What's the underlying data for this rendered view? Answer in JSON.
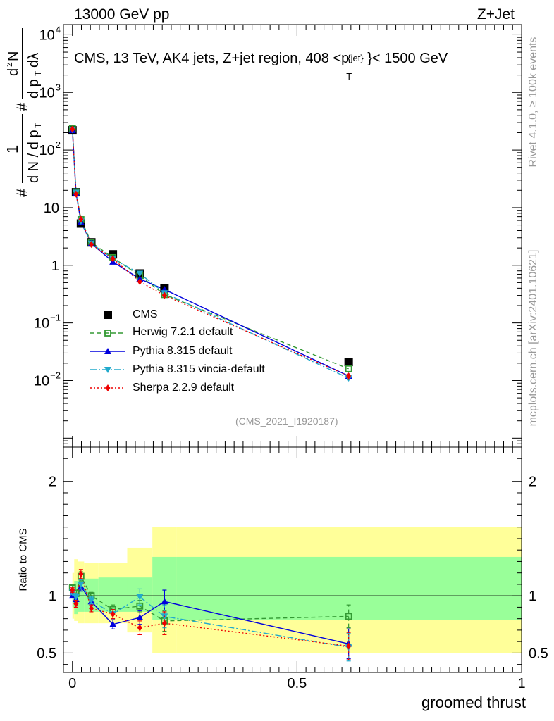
{
  "header": {
    "left": "13000 GeV pp",
    "right": "Z+Jet",
    "title": "CMS, 13 TeV, AK4 jets, Z+jet region, 408 <p",
    "title_sup": "{jet}",
    "title_sub": "T",
    "title_tail": "}< 1500 GeV"
  },
  "side_labels": {
    "rivet": "Rivet 4.1.0, ≥ 100k events",
    "mcplots": "mcplots.cern.ch [arXiv:2401.10621]"
  },
  "analysis_id": "(CMS_2021_I1920187)",
  "chart_data": [
    {
      "type": "line",
      "panel": "main",
      "yscale": "log",
      "ylabel": "1/dN/dp_T dN²/dp_T dλ",
      "ylim": [
        0.0007,
        15000
      ],
      "xlim": [
        -0.02,
        1.0
      ],
      "y_ticks": [
        {
          "v": 0.01,
          "b": "10",
          "e": "−2"
        },
        {
          "v": 0.1,
          "b": "10",
          "e": "−1"
        },
        {
          "v": 1,
          "b": "1",
          "e": ""
        },
        {
          "v": 10,
          "b": "10",
          "e": ""
        },
        {
          "v": 100,
          "b": "10",
          "e": "2"
        },
        {
          "v": 1000,
          "b": "10",
          "e": "3"
        },
        {
          "v": 10000,
          "b": "10",
          "e": "4"
        }
      ],
      "x": [
        0.0,
        0.008,
        0.019,
        0.042,
        0.09,
        0.15,
        0.205,
        0.615
      ],
      "series": [
        {
          "name": "CMS",
          "color": "#000000",
          "style": "points",
          "marker": "square",
          "values": [
            220,
            18.5,
            5.3,
            2.5,
            1.55,
            0.72,
            0.4,
            0.021
          ]
        },
        {
          "name": "Herwig 7.2.1 default",
          "color": "#339933",
          "style": "dashed",
          "marker": "open-square",
          "values": [
            235,
            18.8,
            6.2,
            2.5,
            1.36,
            0.66,
            0.31,
            0.016
          ]
        },
        {
          "name": "Pythia 8.315 default",
          "color": "#0000dd",
          "style": "solid",
          "marker": "triangle-up",
          "values": [
            220,
            18.0,
            5.6,
            2.4,
            1.15,
            0.58,
            0.38,
            0.012
          ]
        },
        {
          "name": "Pythia 8.315 vincia-default",
          "color": "#22aacc",
          "style": "dashdot",
          "marker": "triangle-down",
          "values": [
            225,
            18.3,
            5.8,
            2.4,
            1.3,
            0.72,
            0.33,
            0.011
          ]
        },
        {
          "name": "Sherpa 2.2.9 default",
          "color": "#ee0000",
          "style": "dotted",
          "marker": "diamond",
          "values": [
            230,
            17.2,
            6.3,
            2.3,
            1.3,
            0.52,
            0.3,
            0.012
          ]
        }
      ]
    },
    {
      "type": "line",
      "panel": "ratio",
      "ylabel": "Ratio to CMS",
      "ylim": [
        0.33,
        2.3
      ],
      "y_ticks": [
        0.5,
        1,
        2
      ],
      "x_ticks": [
        0,
        0.5,
        1
      ],
      "xlabel": "groomed thrust",
      "x": [
        0.0,
        0.008,
        0.019,
        0.042,
        0.09,
        0.15,
        0.205,
        0.615
      ],
      "bands": {
        "edges": [
          0.0,
          0.004,
          0.012,
          0.026,
          0.058,
          0.122,
          0.178,
          0.232,
          1.0
        ],
        "green_low": [
          0.9,
          0.84,
          0.86,
          0.86,
          0.86,
          0.86,
          0.79,
          0.79
        ],
        "green_high": [
          1.1,
          1.13,
          1.14,
          1.15,
          1.16,
          1.16,
          1.34,
          1.34
        ],
        "yellow_low": [
          0.8,
          0.78,
          0.76,
          0.76,
          0.76,
          0.68,
          0.5,
          0.5
        ],
        "yellow_high": [
          1.2,
          1.32,
          1.3,
          1.29,
          1.29,
          1.42,
          1.6,
          1.6
        ]
      },
      "series": [
        {
          "name": "Herwig 7.2.1 default",
          "color": "#339933",
          "style": "dashed",
          "marker": "open-square",
          "values": [
            1.07,
            1.02,
            1.17,
            1.0,
            0.88,
            0.91,
            0.78,
            0.82
          ],
          "errors": [
            0.02,
            0.03,
            0.04,
            0.03,
            0.04,
            0.05,
            0.09,
            0.1
          ]
        },
        {
          "name": "Pythia 8.315 default",
          "color": "#0000dd",
          "style": "solid",
          "marker": "triangle-up",
          "values": [
            1.0,
            0.97,
            1.08,
            0.95,
            0.75,
            0.81,
            0.95,
            0.58
          ],
          "errors": [
            0.02,
            0.03,
            0.04,
            0.03,
            0.04,
            0.06,
            0.1,
            0.13
          ]
        },
        {
          "name": "Pythia 8.315 vincia-default",
          "color": "#22aacc",
          "style": "dashdot",
          "marker": "triangle-down",
          "values": [
            1.03,
            0.99,
            1.1,
            0.96,
            0.84,
            0.99,
            0.82,
            0.55
          ],
          "errors": [
            0.02,
            0.03,
            0.04,
            0.03,
            0.04,
            0.07,
            0.1,
            0.12
          ]
        },
        {
          "name": "Sherpa 2.2.9 default",
          "color": "#ee0000",
          "style": "dotted",
          "marker": "diamond",
          "values": [
            1.05,
            0.93,
            1.19,
            0.89,
            0.84,
            0.72,
            0.76,
            0.56
          ],
          "errors": [
            0.02,
            0.03,
            0.04,
            0.03,
            0.04,
            0.06,
            0.1,
            0.12
          ]
        }
      ]
    }
  ]
}
